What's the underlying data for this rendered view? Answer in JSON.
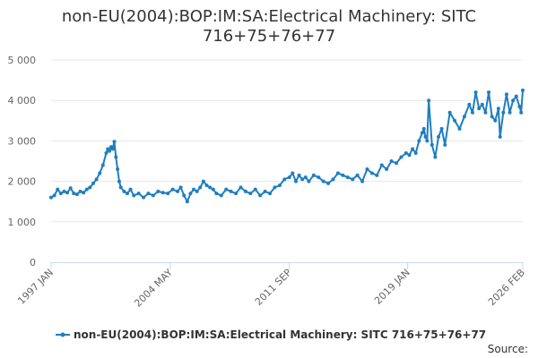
{
  "chart_data": {
    "type": "line",
    "title": "non-EU(2004):BOP:IM:SA:Electrical Machinery: SITC 716+75+76+77",
    "xlabel": "",
    "ylabel": "",
    "ylim": [
      0,
      5000
    ],
    "y_ticks": [
      0,
      1000,
      2000,
      3000,
      4000,
      5000
    ],
    "y_tick_labels": [
      "0",
      "1 000",
      "2 000",
      "3 000",
      "4 000",
      "5 000"
    ],
    "xlim": [
      1997.0,
      2026.1
    ],
    "x_ticks": [
      1997.0,
      2004.35,
      2011.7,
      2019.0,
      2026.1
    ],
    "x_tick_labels": [
      "1997 JAN",
      "2004 MAY",
      "2011 SEP",
      "2019 JAN",
      "2026 FEB"
    ],
    "grid": true,
    "legend_position": "bottom",
    "color": "#1f7ec1",
    "source_label": "Source:",
    "series": [
      {
        "name": "non-EU(2004):BOP:IM:SA:Electrical Machinery: SITC 716+75+76+77",
        "x": [
          1997.0,
          1997.2,
          1997.4,
          1997.6,
          1997.8,
          1998.0,
          1998.2,
          1998.4,
          1998.6,
          1998.8,
          1999.0,
          1999.2,
          1999.4,
          1999.6,
          1999.8,
          2000.0,
          2000.2,
          2000.4,
          2000.5,
          2000.6,
          2000.7,
          2000.8,
          2000.9,
          2001.0,
          2001.1,
          2001.2,
          2001.3,
          2001.5,
          2001.7,
          2001.9,
          2002.1,
          2002.4,
          2002.7,
          2003.0,
          2003.3,
          2003.6,
          2003.9,
          2004.2,
          2004.5,
          2004.8,
          2005.0,
          2005.2,
          2005.4,
          2005.6,
          2005.8,
          2006.0,
          2006.2,
          2006.4,
          2006.6,
          2006.8,
          2007.0,
          2007.2,
          2007.5,
          2007.8,
          2008.1,
          2008.4,
          2008.7,
          2009.0,
          2009.3,
          2009.6,
          2009.9,
          2010.2,
          2010.5,
          2010.8,
          2011.1,
          2011.4,
          2011.7,
          2011.9,
          2012.1,
          2012.3,
          2012.5,
          2012.7,
          2012.9,
          2013.2,
          2013.5,
          2013.8,
          2014.1,
          2014.4,
          2014.7,
          2015.0,
          2015.3,
          2015.6,
          2015.9,
          2016.2,
          2016.5,
          2016.8,
          2017.1,
          2017.4,
          2017.7,
          2018.0,
          2018.3,
          2018.6,
          2018.9,
          2019.1,
          2019.3,
          2019.5,
          2019.7,
          2019.9,
          2020.0,
          2020.1,
          2020.2,
          2020.3,
          2020.5,
          2020.7,
          2020.9,
          2021.1,
          2021.3,
          2021.6,
          2021.9,
          2022.2,
          2022.5,
          2022.8,
          2023.0,
          2023.2,
          2023.4,
          2023.6,
          2023.8,
          2024.0,
          2024.2,
          2024.4,
          2024.6,
          2024.7,
          2024.9,
          2025.1,
          2025.3,
          2025.5,
          2025.7,
          2025.9,
          2026.0,
          2026.1
        ],
        "values": [
          1600,
          1650,
          1800,
          1700,
          1750,
          1720,
          1830,
          1700,
          1680,
          1750,
          1720,
          1800,
          1850,
          1950,
          2050,
          2200,
          2400,
          2700,
          2800,
          2750,
          2850,
          2800,
          2980,
          2600,
          2300,
          2000,
          1850,
          1750,
          1700,
          1800,
          1650,
          1700,
          1600,
          1700,
          1650,
          1750,
          1720,
          1700,
          1800,
          1750,
          1850,
          1650,
          1500,
          1700,
          1800,
          1750,
          1850,
          2000,
          1900,
          1850,
          1800,
          1700,
          1650,
          1800,
          1750,
          1700,
          1850,
          1750,
          1700,
          1800,
          1650,
          1750,
          1700,
          1850,
          1900,
          2050,
          2100,
          2200,
          2000,
          2150,
          2050,
          2100,
          2000,
          2150,
          2100,
          2000,
          1950,
          2050,
          2200,
          2150,
          2100,
          2050,
          2150,
          2000,
          2300,
          2200,
          2150,
          2400,
          2300,
          2500,
          2450,
          2600,
          2700,
          2650,
          2800,
          2700,
          3000,
          3200,
          3300,
          3100,
          3000,
          4000,
          2900,
          2600,
          3100,
          3300,
          2900,
          3700,
          3500,
          3300,
          3600,
          3900,
          3700,
          4200,
          3800,
          3900,
          3700,
          4200,
          3600,
          3500,
          3800,
          3100,
          3700,
          4150,
          3700,
          4000,
          4100,
          3850,
          3700,
          4250
        ]
      }
    ]
  }
}
